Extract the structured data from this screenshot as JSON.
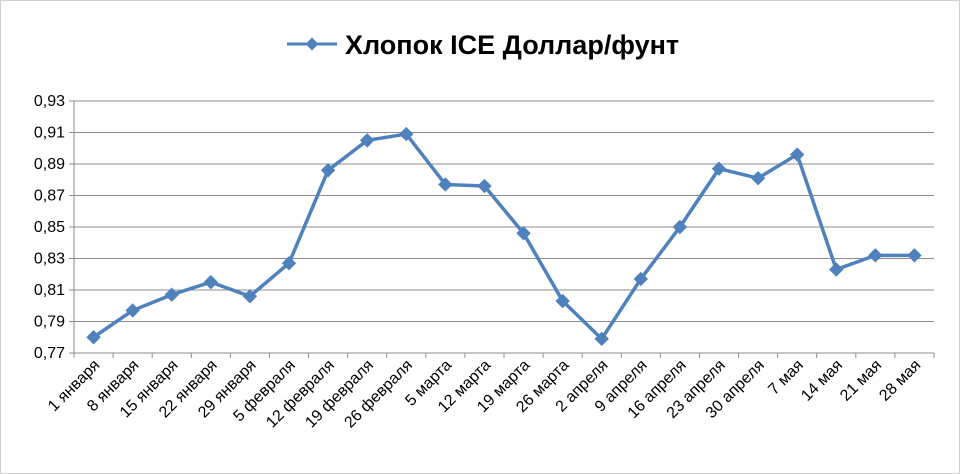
{
  "chart_data": {
    "type": "line",
    "title": "Хлопок ICE Доллар/фунт",
    "legend": "top",
    "grid": true,
    "xlabel": "",
    "ylabel": "",
    "ylim": [
      0.77,
      0.93
    ],
    "y_ticks": [
      "0,77",
      "0,79",
      "0,81",
      "0,83",
      "0,85",
      "0,87",
      "0,89",
      "0,91",
      "0,93"
    ],
    "categories": [
      "1 января",
      "8 января",
      "15 января",
      "22 января",
      "29 января",
      "5 февраля",
      "12 февраля",
      "19 февраля",
      "26 февраля",
      "5 марта",
      "12 марта",
      "19 марта",
      "26 марта",
      "2 апреля",
      "9 апреля",
      "16 апреля",
      "23 апреля",
      "30 апреля",
      "7 мая",
      "14 мая",
      "21 мая",
      "28 мая"
    ],
    "series": [
      {
        "name": "Хлопок ICE Доллар/фунт",
        "color": "#4f81bd",
        "marker": "diamond",
        "values": [
          0.78,
          0.797,
          0.807,
          0.815,
          0.806,
          0.827,
          0.886,
          0.905,
          0.909,
          0.877,
          0.876,
          0.846,
          0.803,
          0.779,
          0.817,
          0.85,
          0.887,
          0.881,
          0.896,
          0.823,
          0.832,
          0.832
        ]
      }
    ]
  }
}
